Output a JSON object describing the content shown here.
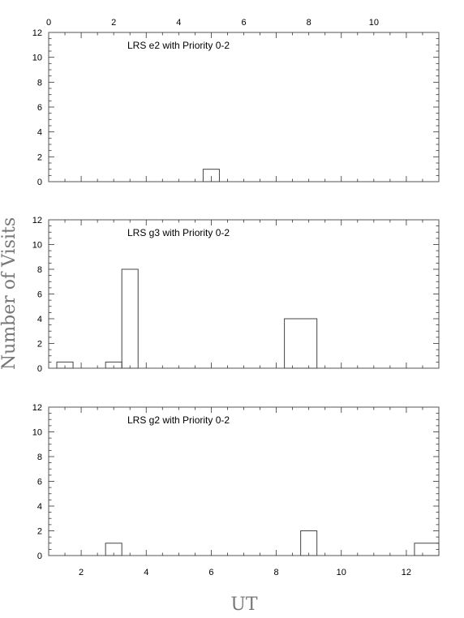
{
  "chart_data": {
    "type": "bar",
    "xlabel": "UT",
    "ylabel": "Number of Visits",
    "xlim": [
      1,
      13
    ],
    "top_axis": {
      "offset_hours": -1,
      "ticks": [
        0,
        2,
        4,
        6,
        8,
        10
      ]
    },
    "bottom_axis": {
      "ticks": [
        2,
        4,
        6,
        8,
        10,
        12
      ]
    },
    "panels": [
      {
        "title": "LRS e2 with Priority 0-2",
        "ylim": [
          0,
          12
        ],
        "yticks": [
          0,
          2,
          4,
          6,
          8,
          10,
          12
        ],
        "bins": [
          {
            "x0": 5.75,
            "x1": 6.25,
            "value": 1
          }
        ]
      },
      {
        "title": "LRS g3 with Priority 0-2",
        "ylim": [
          0,
          12
        ],
        "yticks": [
          0,
          2,
          4,
          6,
          8,
          10,
          12
        ],
        "bins": [
          {
            "x0": 1.25,
            "x1": 1.75,
            "value": 0.5
          },
          {
            "x0": 2.75,
            "x1": 3.25,
            "value": 0.5
          },
          {
            "x0": 3.25,
            "x1": 3.75,
            "value": 8
          },
          {
            "x0": 8.25,
            "x1": 9.25,
            "value": 4
          }
        ]
      },
      {
        "title": "LRS g2 with Priority 0-2",
        "ylim": [
          0,
          12
        ],
        "yticks": [
          0,
          2,
          4,
          6,
          8,
          10,
          12
        ],
        "bins": [
          {
            "x0": 2.75,
            "x1": 3.25,
            "value": 1
          },
          {
            "x0": 8.75,
            "x1": 9.25,
            "value": 2
          },
          {
            "x0": 12.25,
            "x1": 13,
            "value": 1
          }
        ]
      }
    ]
  }
}
